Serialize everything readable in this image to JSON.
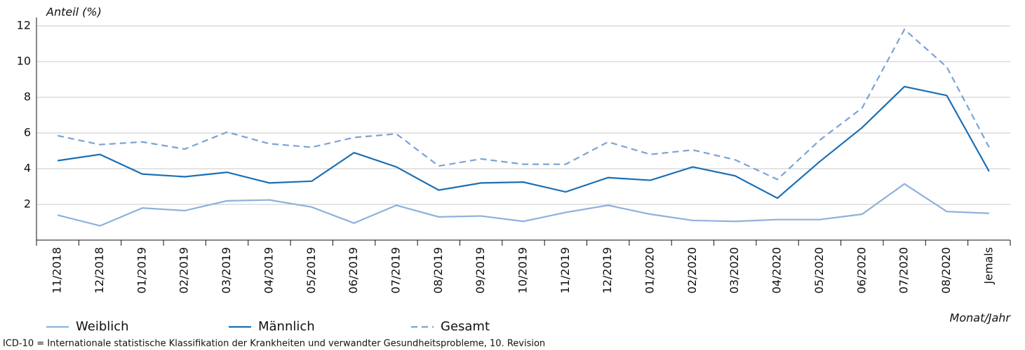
{
  "chart_data": {
    "type": "line",
    "y_label": "Anteil (%)",
    "x_label": "Monat/Jahr",
    "note": "ICD-10 = Internationale statistische Klassifikation der Krankheiten und verwandter Gesundheitsprobleme, 10. Revision",
    "categories": [
      "11/2018",
      "12/2018",
      "01/2019",
      "02/2019",
      "03/2019",
      "04/2019",
      "05/2019",
      "06/2019",
      "07/2019",
      "08/2019",
      "09/2019",
      "10/2019",
      "11/2019",
      "12/2019",
      "01/2020",
      "02/2020",
      "03/2020",
      "04/2020",
      "05/2020",
      "06/2020",
      "07/2020",
      "08/2020",
      "Jemals"
    ],
    "series": [
      {
        "name": "Weiblich",
        "color": "#8fb0dc",
        "dashed": false,
        "values": [
          1.4,
          0.8,
          1.8,
          1.65,
          2.2,
          2.25,
          1.85,
          0.95,
          1.95,
          1.3,
          1.35,
          1.05,
          1.55,
          1.95,
          1.45,
          1.1,
          1.05,
          1.15,
          1.15,
          1.45,
          3.15,
          1.6,
          1.5
        ]
      },
      {
        "name": "Männlich",
        "color": "#1a6fb5",
        "dashed": false,
        "values": [
          4.45,
          4.8,
          3.7,
          3.55,
          3.8,
          3.2,
          3.3,
          4.9,
          4.1,
          2.8,
          3.2,
          3.25,
          2.7,
          3.5,
          3.35,
          4.1,
          3.6,
          2.35,
          4.4,
          6.3,
          8.6,
          8.1,
          3.85
        ]
      },
      {
        "name": "Gesamt",
        "color": "#7aa3d6",
        "dashed": true,
        "values": [
          5.85,
          5.35,
          5.5,
          5.1,
          6.05,
          5.4,
          5.2,
          5.75,
          5.95,
          4.15,
          4.55,
          4.25,
          4.25,
          5.5,
          4.8,
          5.05,
          4.5,
          3.4,
          5.6,
          7.4,
          11.8,
          9.7,
          5.2
        ]
      }
    ],
    "ylim": [
      0,
      12
    ],
    "yticks": [
      2,
      4,
      6,
      8,
      10,
      12
    ],
    "grid": true
  }
}
